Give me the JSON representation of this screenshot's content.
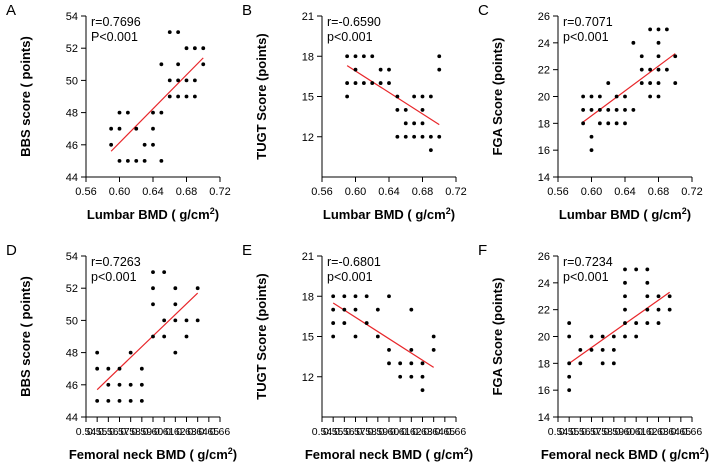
{
  "chart_data": [
    {
      "panel": "A",
      "type": "scatter",
      "stat_r": "r=0.7696",
      "stat_p": "P<0.001",
      "xlabel": "Lumbar BMD ( g/cm",
      "xlabel_sup": "2",
      "xlabel_end": ")",
      "ylabel": "BBS score ( points)",
      "xlim": [
        0.56,
        0.72
      ],
      "ylim": [
        44,
        54
      ],
      "xticks": [
        0.56,
        0.6,
        0.64,
        0.68,
        0.72
      ],
      "xtick_labels": [
        "0.56",
        "0.60",
        "0.64",
        "0.68",
        "0.72"
      ],
      "yticks": [
        44,
        46,
        48,
        50,
        52,
        54
      ],
      "ytick_labels": [
        "44",
        "46",
        "48",
        "50",
        "52",
        "54"
      ],
      "fit": {
        "x": [
          0.59,
          0.7
        ],
        "y": [
          45.6,
          51.4
        ]
      },
      "points": [
        [
          0.59,
          47
        ],
        [
          0.59,
          46
        ],
        [
          0.6,
          47
        ],
        [
          0.6,
          48
        ],
        [
          0.6,
          45
        ],
        [
          0.61,
          48
        ],
        [
          0.61,
          45
        ],
        [
          0.62,
          47
        ],
        [
          0.62,
          45
        ],
        [
          0.63,
          46
        ],
        [
          0.63,
          45
        ],
        [
          0.64,
          48
        ],
        [
          0.64,
          47
        ],
        [
          0.64,
          46
        ],
        [
          0.65,
          51
        ],
        [
          0.65,
          48
        ],
        [
          0.65,
          45
        ],
        [
          0.66,
          53
        ],
        [
          0.66,
          50
        ],
        [
          0.66,
          49
        ],
        [
          0.67,
          53
        ],
        [
          0.67,
          51
        ],
        [
          0.67,
          50
        ],
        [
          0.67,
          49
        ],
        [
          0.68,
          52
        ],
        [
          0.68,
          50
        ],
        [
          0.68,
          49
        ],
        [
          0.69,
          52
        ],
        [
          0.69,
          50
        ],
        [
          0.69,
          49
        ],
        [
          0.7,
          52
        ],
        [
          0.7,
          51
        ]
      ]
    },
    {
      "panel": "B",
      "type": "scatter",
      "stat_r": "r=-0.6590",
      "stat_p": "p<0.001",
      "xlabel": "Lumbar BMD ( g/cm",
      "xlabel_sup": "2",
      "xlabel_end": ")",
      "ylabel": "TUGT Score (points)",
      "xlim": [
        0.56,
        0.72
      ],
      "ylim": [
        9,
        21
      ],
      "xticks": [
        0.56,
        0.6,
        0.64,
        0.68,
        0.72
      ],
      "xtick_labels": [
        "0.56",
        "0.60",
        "0.64",
        "0.68",
        "0.72"
      ],
      "yticks": [
        12,
        15,
        18,
        21
      ],
      "ytick_labels": [
        "12",
        "15",
        "18",
        "21"
      ],
      "fit": {
        "x": [
          0.59,
          0.7
        ],
        "y": [
          17.3,
          12.9
        ]
      },
      "points": [
        [
          0.59,
          18
        ],
        [
          0.59,
          16
        ],
        [
          0.59,
          15
        ],
        [
          0.6,
          18
        ],
        [
          0.6,
          17
        ],
        [
          0.6,
          16
        ],
        [
          0.61,
          18
        ],
        [
          0.61,
          16
        ],
        [
          0.62,
          18
        ],
        [
          0.62,
          16
        ],
        [
          0.63,
          17
        ],
        [
          0.63,
          16
        ],
        [
          0.64,
          17
        ],
        [
          0.64,
          16
        ],
        [
          0.65,
          15
        ],
        [
          0.65,
          14
        ],
        [
          0.65,
          12
        ],
        [
          0.66,
          14
        ],
        [
          0.66,
          13
        ],
        [
          0.66,
          12
        ],
        [
          0.67,
          15
        ],
        [
          0.67,
          13
        ],
        [
          0.67,
          12
        ],
        [
          0.68,
          15
        ],
        [
          0.68,
          14
        ],
        [
          0.68,
          13
        ],
        [
          0.68,
          12
        ],
        [
          0.69,
          15
        ],
        [
          0.69,
          12
        ],
        [
          0.69,
          11
        ],
        [
          0.7,
          18
        ],
        [
          0.7,
          17
        ],
        [
          0.7,
          12
        ]
      ]
    },
    {
      "panel": "C",
      "type": "scatter",
      "stat_r": "r=0.7071",
      "stat_p": "p<0.001",
      "xlabel": "Lumbar BMD ( g/cm",
      "xlabel_sup": "2",
      "xlabel_end": ")",
      "ylabel": "FGA Score (points)",
      "xlim": [
        0.56,
        0.72
      ],
      "ylim": [
        14,
        26
      ],
      "xticks": [
        0.56,
        0.6,
        0.64,
        0.68,
        0.72
      ],
      "xtick_labels": [
        "0.56",
        "0.60",
        "0.64",
        "0.68",
        "0.72"
      ],
      "yticks": [
        14,
        16,
        18,
        20,
        22,
        24,
        26
      ],
      "ytick_labels": [
        "14",
        "16",
        "18",
        "20",
        "22",
        "24",
        "26"
      ],
      "fit": {
        "x": [
          0.59,
          0.7
        ],
        "y": [
          18.1,
          23.2
        ]
      },
      "points": [
        [
          0.59,
          20
        ],
        [
          0.59,
          19
        ],
        [
          0.59,
          18
        ],
        [
          0.6,
          20
        ],
        [
          0.6,
          19
        ],
        [
          0.6,
          17
        ],
        [
          0.6,
          16
        ],
        [
          0.61,
          20
        ],
        [
          0.61,
          19
        ],
        [
          0.61,
          18
        ],
        [
          0.62,
          21
        ],
        [
          0.62,
          19
        ],
        [
          0.62,
          18
        ],
        [
          0.63,
          20
        ],
        [
          0.63,
          19
        ],
        [
          0.63,
          18
        ],
        [
          0.64,
          20
        ],
        [
          0.64,
          19
        ],
        [
          0.64,
          18
        ],
        [
          0.65,
          24
        ],
        [
          0.65,
          19
        ],
        [
          0.66,
          23
        ],
        [
          0.66,
          22
        ],
        [
          0.66,
          21
        ],
        [
          0.67,
          25
        ],
        [
          0.67,
          22
        ],
        [
          0.67,
          21
        ],
        [
          0.67,
          20
        ],
        [
          0.68,
          25
        ],
        [
          0.68,
          24
        ],
        [
          0.68,
          23
        ],
        [
          0.68,
          22
        ],
        [
          0.68,
          21
        ],
        [
          0.68,
          20
        ],
        [
          0.69,
          25
        ],
        [
          0.69,
          22
        ],
        [
          0.7,
          23
        ],
        [
          0.7,
          21
        ]
      ]
    },
    {
      "panel": "D",
      "type": "scatter",
      "stat_r": "r=0.7263",
      "stat_p": "p<0.001",
      "xlabel": "Femoral neck BMD ( g/cm",
      "xlabel_sup": "2",
      "xlabel_end": ")",
      "ylabel": "BBS score ( points)",
      "xlim": [
        0.54,
        0.66
      ],
      "ylim": [
        44,
        54
      ],
      "xticks": [
        0.54,
        0.55,
        0.56,
        0.57,
        0.58,
        0.59,
        0.6,
        0.61,
        0.62,
        0.63,
        0.64,
        0.65,
        0.66
      ],
      "xtick_labels": [
        "0.54",
        "0.55",
        "0.56",
        "0.57",
        "0.58",
        "0.59",
        "0.60",
        "0.61",
        "0.62",
        "0.63",
        "0.64",
        "0.65",
        "0.66"
      ],
      "yticks": [
        44,
        46,
        48,
        50,
        52,
        54
      ],
      "ytick_labels": [
        "44",
        "46",
        "48",
        "50",
        "52",
        "54"
      ],
      "fit": {
        "x": [
          0.55,
          0.64
        ],
        "y": [
          45.7,
          51.7
        ]
      },
      "points": [
        [
          0.55,
          48
        ],
        [
          0.55,
          47
        ],
        [
          0.55,
          45
        ],
        [
          0.56,
          47
        ],
        [
          0.56,
          46
        ],
        [
          0.56,
          45
        ],
        [
          0.57,
          47
        ],
        [
          0.57,
          46
        ],
        [
          0.57,
          45
        ],
        [
          0.58,
          48
        ],
        [
          0.58,
          46
        ],
        [
          0.58,
          45
        ],
        [
          0.59,
          47
        ],
        [
          0.59,
          46
        ],
        [
          0.59,
          45
        ],
        [
          0.6,
          53
        ],
        [
          0.6,
          52
        ],
        [
          0.6,
          51
        ],
        [
          0.6,
          49
        ],
        [
          0.61,
          53
        ],
        [
          0.61,
          50
        ],
        [
          0.61,
          49
        ],
        [
          0.62,
          52
        ],
        [
          0.62,
          51
        ],
        [
          0.62,
          50
        ],
        [
          0.62,
          48
        ],
        [
          0.63,
          50
        ],
        [
          0.63,
          49
        ],
        [
          0.64,
          52
        ],
        [
          0.64,
          50
        ]
      ]
    },
    {
      "panel": "E",
      "type": "scatter",
      "stat_r": "r=-0.6801",
      "stat_p": "p<0.001",
      "xlabel": "Femoral neck BMD ( g/cm",
      "xlabel_sup": "2",
      "xlabel_end": ")",
      "ylabel": "TUGT Score (points)",
      "xlim": [
        0.54,
        0.66
      ],
      "ylim": [
        9,
        21
      ],
      "xticks": [
        0.54,
        0.55,
        0.56,
        0.57,
        0.58,
        0.59,
        0.6,
        0.61,
        0.62,
        0.63,
        0.64,
        0.65,
        0.66
      ],
      "xtick_labels": [
        "0.54",
        "0.55",
        "0.56",
        "0.57",
        "0.58",
        "0.59",
        "0.60",
        "0.61",
        "0.62",
        "0.63",
        "0.64",
        "0.65",
        "0.66"
      ],
      "yticks": [
        12,
        15,
        18,
        21
      ],
      "ytick_labels": [
        "12",
        "15",
        "18",
        "21"
      ],
      "fit": {
        "x": [
          0.55,
          0.64
        ],
        "y": [
          17.5,
          12.7
        ]
      },
      "points": [
        [
          0.55,
          18
        ],
        [
          0.55,
          17
        ],
        [
          0.55,
          16
        ],
        [
          0.55,
          15
        ],
        [
          0.56,
          18
        ],
        [
          0.56,
          17
        ],
        [
          0.56,
          16
        ],
        [
          0.57,
          18
        ],
        [
          0.57,
          17
        ],
        [
          0.57,
          15
        ],
        [
          0.58,
          18
        ],
        [
          0.58,
          16
        ],
        [
          0.59,
          17
        ],
        [
          0.59,
          15
        ],
        [
          0.6,
          18
        ],
        [
          0.6,
          14
        ],
        [
          0.6,
          13
        ],
        [
          0.61,
          13
        ],
        [
          0.61,
          12
        ],
        [
          0.62,
          17
        ],
        [
          0.62,
          14
        ],
        [
          0.62,
          13
        ],
        [
          0.62,
          12
        ],
        [
          0.63,
          13
        ],
        [
          0.63,
          12
        ],
        [
          0.63,
          11
        ],
        [
          0.64,
          15
        ],
        [
          0.64,
          14
        ]
      ]
    },
    {
      "panel": "F",
      "type": "scatter",
      "stat_r": "r=0.7234",
      "stat_p": "p<0.001",
      "xlabel": "Femoral neck BMD ( g/cm",
      "xlabel_sup": "2",
      "xlabel_end": ")",
      "ylabel": "FGA Score (points)",
      "xlim": [
        0.54,
        0.66
      ],
      "ylim": [
        14,
        26
      ],
      "xticks": [
        0.54,
        0.55,
        0.56,
        0.57,
        0.58,
        0.59,
        0.6,
        0.61,
        0.62,
        0.63,
        0.64,
        0.65,
        0.66
      ],
      "xtick_labels": [
        "0.54",
        "0.55",
        "0.56",
        "0.57",
        "0.58",
        "0.59",
        "0.60",
        "0.61",
        "0.62",
        "0.63",
        "0.64",
        "0.65",
        "0.66"
      ],
      "yticks": [
        14,
        16,
        18,
        20,
        22,
        24,
        26
      ],
      "ytick_labels": [
        "14",
        "16",
        "18",
        "20",
        "22",
        "24",
        "26"
      ],
      "fit": {
        "x": [
          0.55,
          0.64
        ],
        "y": [
          18.0,
          23.3
        ]
      },
      "points": [
        [
          0.55,
          21
        ],
        [
          0.55,
          20
        ],
        [
          0.55,
          18
        ],
        [
          0.55,
          17
        ],
        [
          0.55,
          16
        ],
        [
          0.56,
          19
        ],
        [
          0.56,
          18
        ],
        [
          0.57,
          20
        ],
        [
          0.57,
          19
        ],
        [
          0.58,
          20
        ],
        [
          0.58,
          19
        ],
        [
          0.58,
          18
        ],
        [
          0.59,
          20
        ],
        [
          0.59,
          19
        ],
        [
          0.59,
          18
        ],
        [
          0.6,
          25
        ],
        [
          0.6,
          24
        ],
        [
          0.6,
          23
        ],
        [
          0.6,
          22
        ],
        [
          0.6,
          21
        ],
        [
          0.6,
          20
        ],
        [
          0.61,
          25
        ],
        [
          0.61,
          21
        ],
        [
          0.61,
          20
        ],
        [
          0.62,
          25
        ],
        [
          0.62,
          24
        ],
        [
          0.62,
          23
        ],
        [
          0.62,
          22
        ],
        [
          0.62,
          21
        ],
        [
          0.63,
          23
        ],
        [
          0.63,
          22
        ],
        [
          0.63,
          21
        ],
        [
          0.64,
          23
        ],
        [
          0.64,
          22
        ]
      ]
    }
  ],
  "colors": {
    "fit_line": "#e8262a",
    "points": "#000000",
    "axes": "#000000"
  }
}
